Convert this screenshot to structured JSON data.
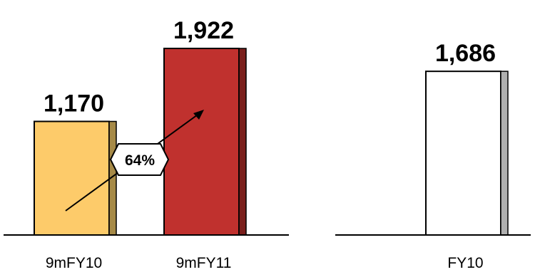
{
  "chart_data": {
    "type": "bar",
    "categories": [
      "9mFY10",
      "9mFY11",
      "FY10"
    ],
    "values": [
      1170,
      1922,
      1686
    ],
    "value_labels": [
      "1,170",
      "1,922",
      "1,686"
    ],
    "colors": {
      "9mFY10": {
        "fill": "#FDCB6A",
        "side": "#A68A47"
      },
      "9mFY11": {
        "fill": "#C0312E",
        "side": "#7A1F1C"
      },
      "FY10": {
        "fill": "#FFFFFF",
        "side": "#B0B0B0"
      }
    },
    "annotations": [
      {
        "text": "64%",
        "from": "9mFY10",
        "to": "9mFY11"
      }
    ],
    "ylim": [
      0,
      2000
    ]
  }
}
